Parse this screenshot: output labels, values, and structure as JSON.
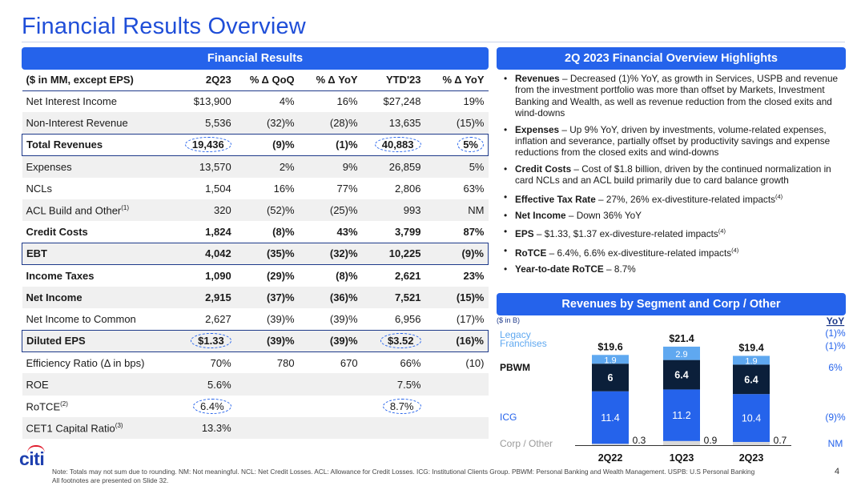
{
  "title": "Financial Results Overview",
  "left_header": "Financial Results",
  "right_header": "2Q 2023 Financial Overview Highlights",
  "chart_header": "Revenues by Segment and Corp / Other",
  "table": {
    "columns": [
      "($ in MM, except EPS)",
      "2Q23",
      "% Δ QoQ",
      "% Δ YoY",
      "YTD'23",
      "% Δ YoY"
    ],
    "rows": [
      {
        "label": "Net Interest Income",
        "sup": "",
        "vals": [
          "$13,900",
          "4%",
          "16%",
          "$27,248",
          "19%"
        ]
      },
      {
        "label": "Non-Interest Revenue",
        "sup": "",
        "vals": [
          "5,536",
          "(32)%",
          "(28)%",
          "13,635",
          "(15)%"
        ]
      },
      {
        "label": "Total Revenues",
        "sup": "",
        "vals": [
          "19,436",
          "(9)%",
          "(1)%",
          "40,883",
          "5%"
        ]
      },
      {
        "label": "Expenses",
        "sup": "",
        "vals": [
          "13,570",
          "2%",
          "9%",
          "26,859",
          "5%"
        ]
      },
      {
        "label": "NCLs",
        "sup": "",
        "vals": [
          "1,504",
          "16%",
          "77%",
          "2,806",
          "63%"
        ]
      },
      {
        "label": "ACL Build and Other",
        "sup": "(1)",
        "vals": [
          "320",
          "(52)%",
          "(25)%",
          "993",
          "NM"
        ]
      },
      {
        "label": "Credit Costs",
        "sup": "",
        "vals": [
          "1,824",
          "(8)%",
          "43%",
          "3,799",
          "87%"
        ]
      },
      {
        "label": "EBT",
        "sup": "",
        "vals": [
          "4,042",
          "(35)%",
          "(32)%",
          "10,225",
          "(9)%"
        ]
      },
      {
        "label": "Income Taxes",
        "sup": "",
        "vals": [
          "1,090",
          "(29)%",
          "(8)%",
          "2,621",
          "23%"
        ]
      },
      {
        "label": "Net Income",
        "sup": "",
        "vals": [
          "2,915",
          "(37)%",
          "(36)%",
          "7,521",
          "(15)%"
        ]
      },
      {
        "label": "Net Income to Common",
        "sup": "",
        "vals": [
          "2,627",
          "(39)%",
          "(39)%",
          "6,956",
          "(17)%"
        ]
      },
      {
        "label": "Diluted EPS",
        "sup": "",
        "vals": [
          "$1.33",
          "(39)%",
          "(39)%",
          "$3.52",
          "(16)%"
        ]
      },
      {
        "label": "Efficiency Ratio (Δ in bps)",
        "sup": "",
        "vals": [
          "70%",
          "780",
          "670",
          "66%",
          "(10)"
        ]
      },
      {
        "label": "ROE",
        "sup": "",
        "vals": [
          "5.6%",
          "",
          "",
          "7.5%",
          ""
        ]
      },
      {
        "label": "RoTCE",
        "sup": "(2)",
        "vals": [
          "6.4%",
          "",
          "",
          "8.7%",
          ""
        ]
      },
      {
        "label": "CET1 Capital Ratio",
        "sup": "(3)",
        "vals": [
          "13.3%",
          "",
          "",
          "",
          ""
        ]
      }
    ]
  },
  "highlights": [
    {
      "key": "Revenues",
      "text": " – Decreased (1)% YoY, as growth in Services, USPB and revenue from the investment portfolio was more than offset by Markets, Investment Banking and Wealth, as well as revenue reduction from the closed exits and wind-downs",
      "sup": ""
    },
    {
      "key": "Expenses",
      "text": " – Up 9% YoY, driven by investments, volume-related expenses, inflation and severance, partially offset by productivity savings and expense reductions from the closed exits and wind-downs",
      "sup": ""
    },
    {
      "key": "Credit Costs",
      "text": " – Cost of $1.8 billion, driven by the continued normalization in card NCLs and an ACL build primarily due to card balance growth",
      "sup": ""
    },
    {
      "key": "Effective Tax Rate",
      "text": " – 27%, 26% ex-divestiture-related impacts",
      "sup": "(4)"
    },
    {
      "key": "Net Income",
      "text": " – Down 36% YoY",
      "sup": ""
    },
    {
      "key": "EPS",
      "text": " – $1.33, $1.37 ex-divesture-related impacts",
      "sup": "(4)"
    },
    {
      "key": "RoTCE",
      "text": " – 6.4%, 6.6% ex-divestiture-related impacts",
      "sup": "(4)"
    },
    {
      "key": "Year-to-date RoTCE",
      "text": " – 8.7%",
      "sup": ""
    }
  ],
  "chart_data": {
    "type": "bar",
    "stacked": true,
    "unit_label": "($ in B)",
    "categories": [
      "2Q22",
      "1Q23",
      "2Q23"
    ],
    "totals": [
      "$19.6",
      "$21.4",
      "$19.4"
    ],
    "series": [
      {
        "name": "Corp / Other",
        "values": [
          0.3,
          0.9,
          0.7
        ],
        "color": "#d9d9d9",
        "yoy": "NM"
      },
      {
        "name": "ICG",
        "values": [
          11.4,
          11.2,
          10.4
        ],
        "color": "#2563eb",
        "yoy": "(9)%"
      },
      {
        "name": "PBWM",
        "values": [
          6.0,
          6.4,
          6.4
        ],
        "color": "#0b1f3a",
        "yoy": "6%"
      },
      {
        "name": "Legacy Franchises",
        "values": [
          1.9,
          2.9,
          1.9
        ],
        "color": "#5fa8f0",
        "yoy": "(1)%"
      }
    ],
    "yoy_header": "YoY",
    "total_yoy": "(1)%"
  },
  "footer": {
    "line1": "Note:  Totals may not sum due to rounding.  NM: Not meaningful. NCL: Net Credit Losses. ACL: Allowance for Credit Losses.  ICG: Institutional Clients Group.  PBWM: Personal Banking and Wealth Management. USPB: U.S Personal Banking",
    "line2": "All footnotes are presented on Slide 32.",
    "page": "4",
    "logo": "citi"
  },
  "colors": {
    "brand_blue": "#2563eb",
    "navy": "#0b1f3a",
    "title_blue": "#1f4ed8",
    "accent_red": "#e11d2e"
  }
}
